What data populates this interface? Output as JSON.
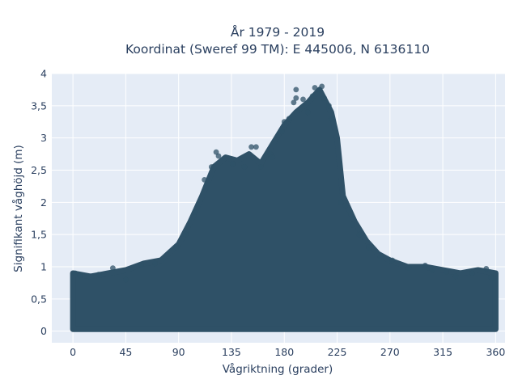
{
  "chart_data": {
    "type": "scatter",
    "title_lines": [
      "År 1979 - 2019",
      "Koordinat (Sweref 99 TM): E 445006, N 6136110"
    ],
    "xlabel": "Vågriktning (grader)",
    "ylabel": "Signifikant våghöjd (m)",
    "xlim": [
      -18,
      368
    ],
    "ylim": [
      -0.18,
      4
    ],
    "x_ticks": [
      0,
      45,
      90,
      135,
      180,
      225,
      270,
      315,
      360
    ],
    "x_tick_labels": [
      "0",
      "45",
      "90",
      "135",
      "180",
      "225",
      "270",
      "315",
      "360"
    ],
    "y_ticks": [
      0,
      0.5,
      1,
      1.5,
      2,
      2.5,
      3,
      3.5,
      4
    ],
    "y_tick_labels": [
      "0",
      "0,5",
      "1",
      "1,5",
      "2",
      "2,5",
      "3",
      "3,5",
      "4"
    ],
    "grid": true,
    "background_color": "#e5ecf6",
    "marker_color": "#2f5167",
    "upper_envelope": [
      [
        0,
        0.9
      ],
      [
        15,
        0.85
      ],
      [
        30,
        0.9
      ],
      [
        45,
        0.95
      ],
      [
        60,
        1.05
      ],
      [
        75,
        1.1
      ],
      [
        90,
        1.35
      ],
      [
        100,
        1.7
      ],
      [
        110,
        2.1
      ],
      [
        120,
        2.55
      ],
      [
        130,
        2.7
      ],
      [
        140,
        2.65
      ],
      [
        150,
        2.75
      ],
      [
        160,
        2.6
      ],
      [
        170,
        2.9
      ],
      [
        180,
        3.2
      ],
      [
        190,
        3.4
      ],
      [
        200,
        3.55
      ],
      [
        210,
        3.75
      ],
      [
        220,
        3.4
      ],
      [
        225,
        3.0
      ],
      [
        230,
        2.1
      ],
      [
        240,
        1.7
      ],
      [
        250,
        1.4
      ],
      [
        260,
        1.2
      ],
      [
        270,
        1.1
      ],
      [
        285,
        1.0
      ],
      [
        300,
        1.0
      ],
      [
        315,
        0.95
      ],
      [
        330,
        0.9
      ],
      [
        345,
        0.95
      ],
      [
        360,
        0.9
      ]
    ],
    "points": [
      [
        2,
        0.9
      ],
      [
        6,
        0.86
      ],
      [
        22,
        0.88
      ],
      [
        34,
        0.98
      ],
      [
        45,
        0.8
      ],
      [
        58,
        1.03
      ],
      [
        70,
        1.05
      ],
      [
        88,
        1.3
      ],
      [
        96,
        1.5
      ],
      [
        104,
        1.85
      ],
      [
        112,
        2.35
      ],
      [
        118,
        2.55
      ],
      [
        122,
        2.78
      ],
      [
        124,
        2.72
      ],
      [
        136,
        2.6
      ],
      [
        146,
        2.55
      ],
      [
        152,
        2.86
      ],
      [
        156,
        2.86
      ],
      [
        160,
        2.55
      ],
      [
        168,
        2.75
      ],
      [
        170,
        2.7
      ],
      [
        178,
        3.1
      ],
      [
        180,
        3.25
      ],
      [
        184,
        3.3
      ],
      [
        188,
        3.55
      ],
      [
        190,
        3.62
      ],
      [
        190,
        3.75
      ],
      [
        196,
        3.6
      ],
      [
        200,
        3.4
      ],
      [
        204,
        3.65
      ],
      [
        206,
        3.78
      ],
      [
        210,
        3.75
      ],
      [
        212,
        3.8
      ],
      [
        214,
        3.62
      ],
      [
        218,
        3.5
      ],
      [
        220,
        3.3
      ],
      [
        228,
        2.0
      ],
      [
        232,
        1.95
      ],
      [
        238,
        1.65
      ],
      [
        244,
        1.5
      ],
      [
        252,
        1.3
      ],
      [
        262,
        1.15
      ],
      [
        272,
        1.1
      ],
      [
        286,
        0.98
      ],
      [
        300,
        1.02
      ],
      [
        306,
        0.95
      ],
      [
        318,
        0.92
      ],
      [
        326,
        0.85
      ],
      [
        340,
        0.9
      ],
      [
        352,
        0.97
      ],
      [
        356,
        0.84
      ],
      [
        358,
        0.82
      ]
    ]
  }
}
